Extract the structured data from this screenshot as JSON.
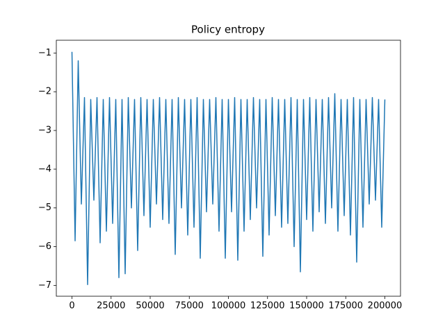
{
  "chart_data": {
    "type": "line",
    "title": "Policy entropy",
    "color": "#1f77b4",
    "x": [
      0,
      2000,
      4000,
      6000,
      8000,
      10000,
      12000,
      14000,
      16000,
      18000,
      20000,
      22000,
      24000,
      26000,
      28000,
      30000,
      32000,
      34000,
      36000,
      38000,
      40000,
      42000,
      44000,
      46000,
      48000,
      50000,
      52000,
      54000,
      56000,
      58000,
      60000,
      62000,
      64000,
      66000,
      68000,
      70000,
      72000,
      74000,
      76000,
      78000,
      80000,
      82000,
      84000,
      86000,
      88000,
      90000,
      92000,
      94000,
      96000,
      98000,
      100000,
      102000,
      104000,
      106000,
      108000,
      110000,
      112000,
      114000,
      116000,
      118000,
      120000,
      122000,
      124000,
      126000,
      128000,
      130000,
      132000,
      134000,
      136000,
      138000,
      140000,
      142000,
      144000,
      146000,
      148000,
      150000,
      152000,
      154000,
      156000,
      158000,
      160000,
      162000,
      164000,
      166000,
      168000,
      170000,
      172000,
      174000,
      176000,
      178000,
      180000,
      182000,
      184000,
      186000,
      188000,
      190000,
      192000,
      194000,
      196000,
      198000,
      200000
    ],
    "values": [
      -0.97,
      -5.85,
      -1.2,
      -4.9,
      -2.15,
      -6.98,
      -2.2,
      -4.8,
      -2.15,
      -5.9,
      -2.2,
      -5.6,
      -2.15,
      -5.4,
      -2.2,
      -6.8,
      -2.2,
      -6.7,
      -2.15,
      -5.0,
      -2.2,
      -6.1,
      -2.15,
      -5.2,
      -2.2,
      -5.5,
      -2.2,
      -4.9,
      -2.15,
      -5.3,
      -2.2,
      -5.4,
      -2.2,
      -6.2,
      -2.15,
      -5.0,
      -2.2,
      -5.7,
      -2.2,
      -5.5,
      -2.15,
      -6.3,
      -2.2,
      -5.1,
      -2.2,
      -4.9,
      -2.15,
      -5.6,
      -2.2,
      -6.3,
      -2.2,
      -5.1,
      -2.15,
      -6.35,
      -2.2,
      -5.6,
      -2.2,
      -5.3,
      -2.15,
      -5.0,
      -2.2,
      -6.25,
      -2.2,
      -5.7,
      -2.15,
      -5.2,
      -2.2,
      -5.5,
      -2.2,
      -5.4,
      -2.15,
      -6.0,
      -2.2,
      -6.65,
      -2.2,
      -5.3,
      -2.15,
      -5.6,
      -2.2,
      -5.1,
      -2.2,
      -5.4,
      -2.15,
      -5.0,
      -2.05,
      -5.6,
      -2.2,
      -5.2,
      -2.2,
      -5.7,
      -2.15,
      -6.4,
      -2.2,
      -5.5,
      -2.2,
      -4.9,
      -2.15,
      -4.8,
      -2.2,
      -5.5,
      -2.2
    ],
    "xlim": [
      -10000,
      210000
    ],
    "ylim": [
      -7.28,
      -0.67
    ],
    "xticks": [
      0,
      25000,
      50000,
      75000,
      100000,
      125000,
      150000,
      175000,
      200000
    ],
    "yticks": [
      {
        "value": -7,
        "label": "−7"
      },
      {
        "value": -6,
        "label": "−6"
      },
      {
        "value": -5,
        "label": "−5"
      },
      {
        "value": -4,
        "label": "−4"
      },
      {
        "value": -3,
        "label": "−3"
      },
      {
        "value": -2,
        "label": "−2"
      },
      {
        "value": -1,
        "label": "−1"
      }
    ]
  }
}
